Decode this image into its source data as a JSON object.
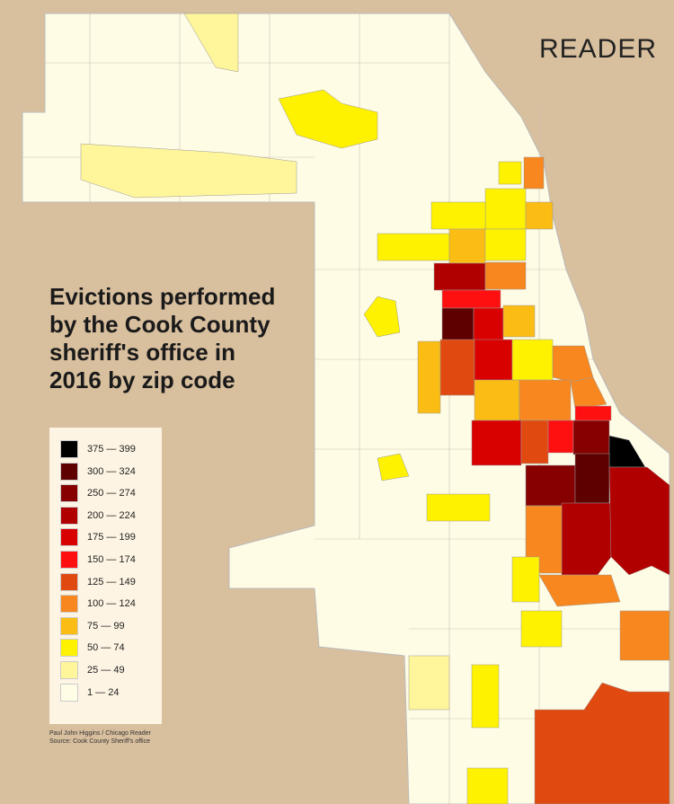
{
  "logo": "READER",
  "title_lines": [
    "Evictions performed",
    "by the Cook County",
    "sheriff's office in",
    "2016 by zip code"
  ],
  "legend": {
    "items": [
      {
        "label": "375 — 399",
        "color": "#000000"
      },
      {
        "label": "300 — 324",
        "color": "#5e0000"
      },
      {
        "label": "250 — 274",
        "color": "#860000"
      },
      {
        "label": "200 — 224",
        "color": "#b00000"
      },
      {
        "label": "175 — 199",
        "color": "#d90000"
      },
      {
        "label": "150 — 174",
        "color": "#ff1010"
      },
      {
        "label": "125 — 149",
        "color": "#e04a10"
      },
      {
        "label": "100 — 124",
        "color": "#f7871e"
      },
      {
        "label": "75 — 99",
        "color": "#fbbd14"
      },
      {
        "label": "50 — 74",
        "color": "#fff200"
      },
      {
        "label": "25 — 49",
        "color": "#fff59a"
      },
      {
        "label": "1 — 24",
        "color": "#fffde6"
      }
    ]
  },
  "credit": [
    "Paul John Higgins / Chicago Reader",
    "Source: Cook County Sheriff's office"
  ]
}
